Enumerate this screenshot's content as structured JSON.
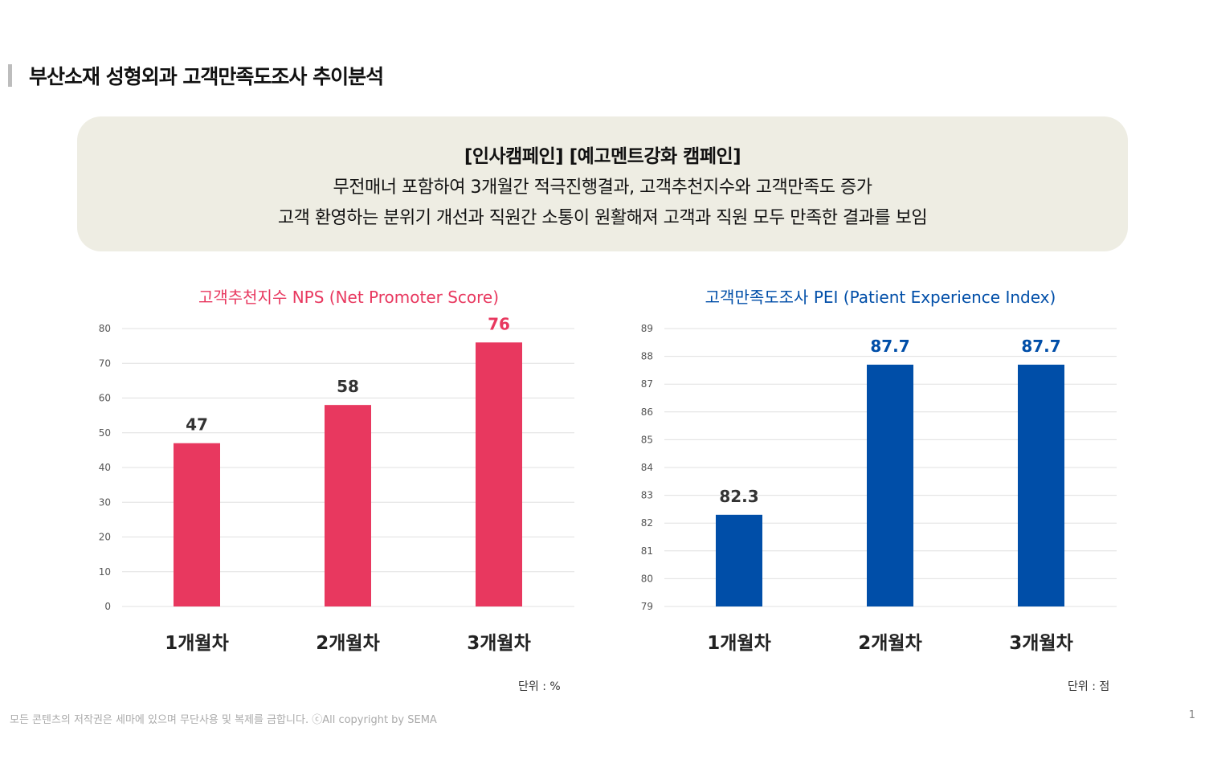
{
  "page_title": "부산소재 성형외과 고객만족도조사 추이분석",
  "summary": {
    "heading": "[인사캠페인] [예고멘트강화 캠페인]",
    "lines": [
      "무전매너 포함하여 3개월간 적극진행결과, 고객추천지수와 고객만족도 증가",
      "고객 환영하는 분위기 개선과 직원간 소통이 원활해져 고객과 직원 모두 만족한 결과를 보임"
    ]
  },
  "chart_data": [
    {
      "type": "bar",
      "title": "고객추천지수 NPS (Net Promoter Score)",
      "categories": [
        "1개월차",
        "2개월차",
        "3개월차"
      ],
      "values": [
        47,
        58,
        76
      ],
      "ylim": [
        0,
        80
      ],
      "yticks": [
        0,
        10,
        20,
        30,
        40,
        50,
        60,
        70,
        80
      ],
      "unit": "단위 : %",
      "color": "#e8385f",
      "title_color": "#e8385f",
      "grid": true
    },
    {
      "type": "bar",
      "title": "고객만족도조사 PEI (Patient Experience Index)",
      "categories": [
        "1개월차",
        "2개월차",
        "3개월차"
      ],
      "values": [
        82.3,
        87.7,
        87.7
      ],
      "ylim": [
        79,
        89
      ],
      "yticks": [
        79,
        80,
        81,
        82,
        83,
        84,
        85,
        86,
        87,
        88,
        89
      ],
      "unit": "단위 : 점",
      "color": "#004ea8",
      "title_color": "#004ea8",
      "grid": true
    }
  ],
  "footer": "모든 콘텐츠의 저작권은 세마에 있으며 무단사용 및 복제를 금합니다.  ⓒAll copyright by  SEMA",
  "page_number": "1"
}
